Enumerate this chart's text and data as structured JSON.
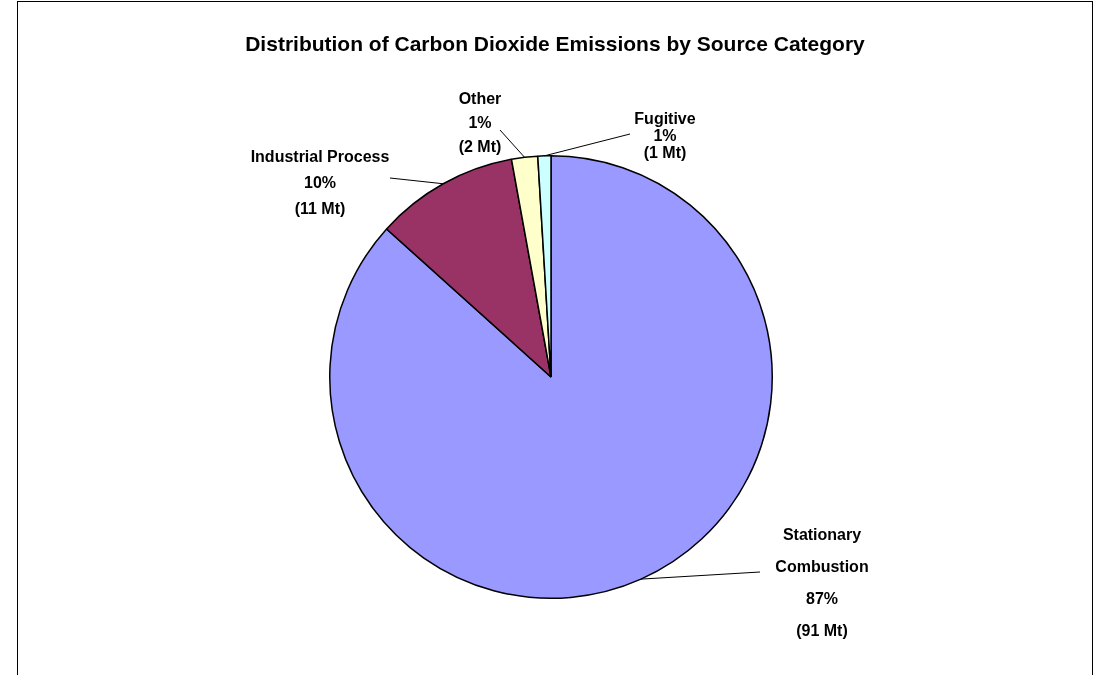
{
  "chart_data": {
    "type": "pie",
    "title": "Distribution of Carbon Dioxide Emissions by Source Category",
    "categories": [
      "Stationary Combustion",
      "Industrial Process",
      "Other",
      "Fugitive"
    ],
    "values": [
      91,
      11,
      2,
      1
    ],
    "value_labels": [
      "87%\n(91 Mt)",
      "10%\n(11 Mt)",
      "1%\n(2 Mt)",
      "1%\n(1 Mt)"
    ],
    "colors": [
      "#9999ff",
      "#993366",
      "#ffffcc",
      "#ccffff"
    ],
    "legend": false
  }
}
